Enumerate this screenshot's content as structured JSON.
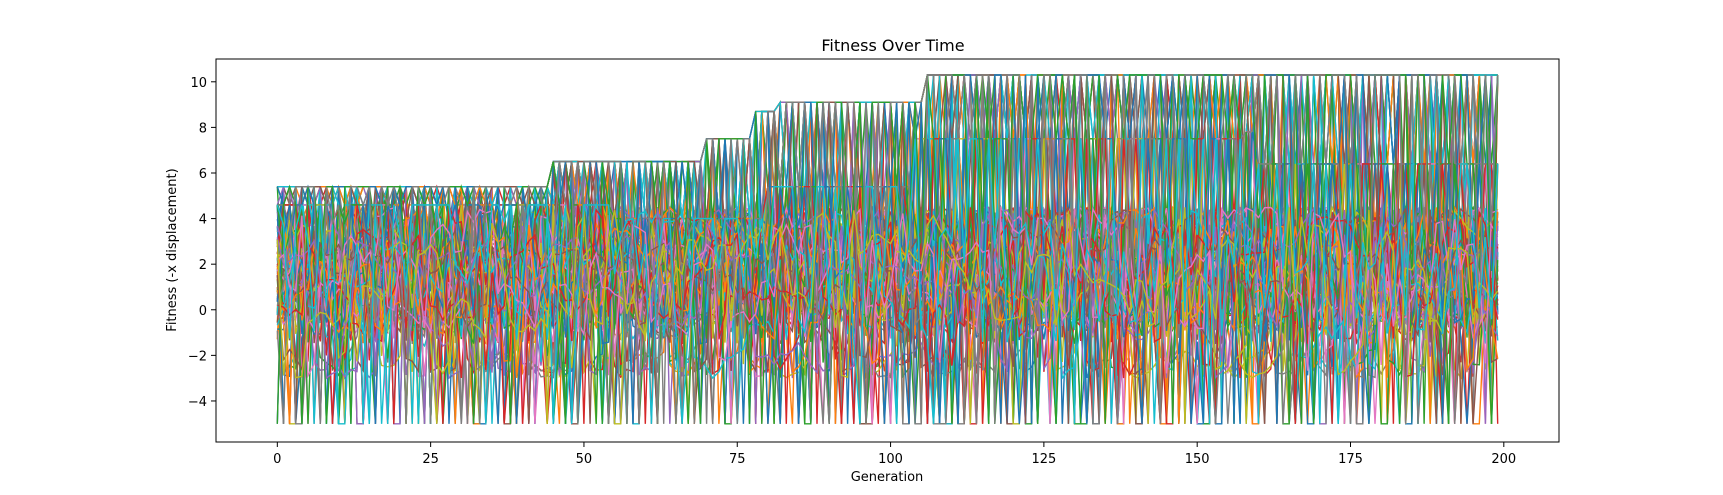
{
  "chart_data": {
    "type": "line",
    "title": "Fitness Over Time",
    "xlabel": "Generation",
    "ylabel": "Fitness (-x displacement)",
    "xlim": [
      -10,
      209
    ],
    "ylim": [
      -5.8,
      11.0
    ],
    "x_ticks": [
      0,
      25,
      50,
      75,
      100,
      125,
      150,
      175,
      200
    ],
    "y_ticks": [
      -4,
      -2,
      0,
      2,
      4,
      6,
      8,
      10
    ],
    "grid": false,
    "legend": "none",
    "palette": [
      "#1f77b4",
      "#ff7f0e",
      "#2ca02c",
      "#d62728",
      "#9467bd",
      "#8c564b",
      "#e377c2",
      "#7f7f7f",
      "#bcbd22",
      "#17becf"
    ],
    "series_count": 100,
    "generations": [
      0,
      199
    ],
    "fitness_floor": -5,
    "best_fitness_levels": [
      {
        "from": 3,
        "value": 5.4
      },
      {
        "from": 45,
        "value": 6.5
      },
      {
        "from": 70,
        "value": 7.5
      },
      {
        "from": 78,
        "value": 8.7
      },
      {
        "from": 82,
        "value": 9.1
      },
      {
        "from": 106,
        "value": 10.3
      }
    ],
    "secondary_levels": [
      {
        "from": 5,
        "value": 4.6
      },
      {
        "from": 55,
        "value": 4.0
      },
      {
        "from": 80,
        "value": 5.4
      },
      {
        "from": 104,
        "value": 7.5
      },
      {
        "from": 158,
        "value": 7.8
      },
      {
        "from": 160,
        "value": 6.4
      }
    ]
  }
}
